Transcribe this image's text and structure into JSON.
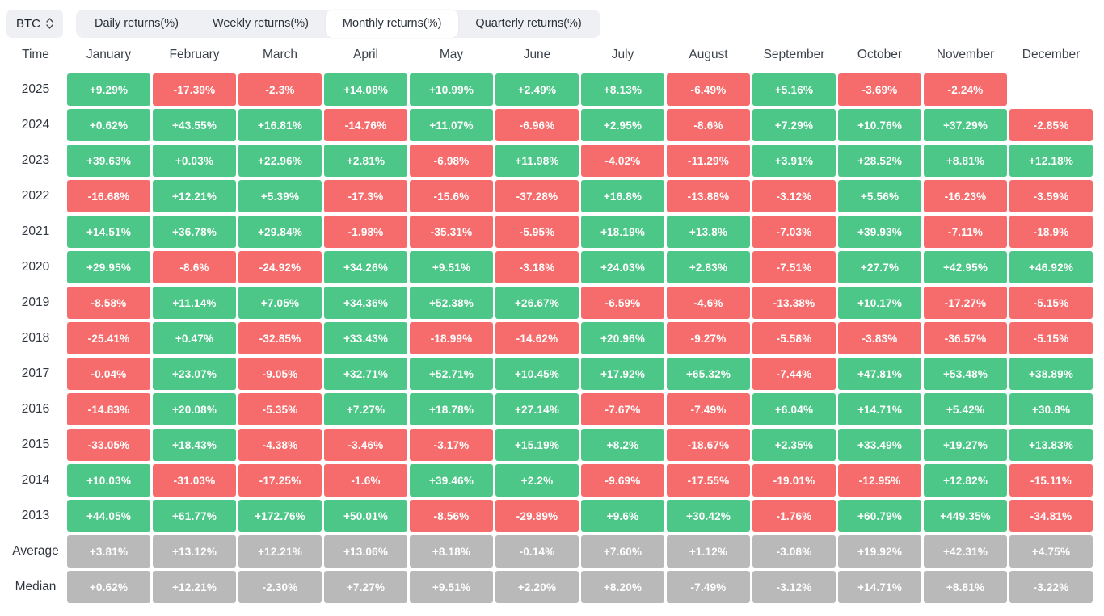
{
  "toolbar": {
    "asset_selector": {
      "value": "BTC"
    },
    "tabs": [
      {
        "label": "Daily returns(%)",
        "active": false
      },
      {
        "label": "Weekly returns(%)",
        "active": false
      },
      {
        "label": "Monthly returns(%)",
        "active": true
      },
      {
        "label": "Quarterly returns(%)",
        "active": false
      }
    ]
  },
  "colors": {
    "positive": "#4cc788",
    "negative": "#f66c6c",
    "summary": "#b9b9b9"
  },
  "table": {
    "time_header": "Time",
    "months": [
      "January",
      "February",
      "March",
      "April",
      "May",
      "June",
      "July",
      "August",
      "September",
      "October",
      "November",
      "December"
    ],
    "rows": [
      {
        "label": "2025",
        "type": "year",
        "values": [
          "+9.29%",
          "-17.39%",
          "-2.3%",
          "+14.08%",
          "+10.99%",
          "+2.49%",
          "+8.13%",
          "-6.49%",
          "+5.16%",
          "-3.69%",
          "-2.24%",
          null
        ]
      },
      {
        "label": "2024",
        "type": "year",
        "values": [
          "+0.62%",
          "+43.55%",
          "+16.81%",
          "-14.76%",
          "+11.07%",
          "-6.96%",
          "+2.95%",
          "-8.6%",
          "+7.29%",
          "+10.76%",
          "+37.29%",
          "-2.85%"
        ]
      },
      {
        "label": "2023",
        "type": "year",
        "values": [
          "+39.63%",
          "+0.03%",
          "+22.96%",
          "+2.81%",
          "-6.98%",
          "+11.98%",
          "-4.02%",
          "-11.29%",
          "+3.91%",
          "+28.52%",
          "+8.81%",
          "+12.18%"
        ]
      },
      {
        "label": "2022",
        "type": "year",
        "values": [
          "-16.68%",
          "+12.21%",
          "+5.39%",
          "-17.3%",
          "-15.6%",
          "-37.28%",
          "+16.8%",
          "-13.88%",
          "-3.12%",
          "+5.56%",
          "-16.23%",
          "-3.59%"
        ]
      },
      {
        "label": "2021",
        "type": "year",
        "values": [
          "+14.51%",
          "+36.78%",
          "+29.84%",
          "-1.98%",
          "-35.31%",
          "-5.95%",
          "+18.19%",
          "+13.8%",
          "-7.03%",
          "+39.93%",
          "-7.11%",
          "-18.9%"
        ]
      },
      {
        "label": "2020",
        "type": "year",
        "values": [
          "+29.95%",
          "-8.6%",
          "-24.92%",
          "+34.26%",
          "+9.51%",
          "-3.18%",
          "+24.03%",
          "+2.83%",
          "-7.51%",
          "+27.7%",
          "+42.95%",
          "+46.92%"
        ]
      },
      {
        "label": "2019",
        "type": "year",
        "values": [
          "-8.58%",
          "+11.14%",
          "+7.05%",
          "+34.36%",
          "+52.38%",
          "+26.67%",
          "-6.59%",
          "-4.6%",
          "-13.38%",
          "+10.17%",
          "-17.27%",
          "-5.15%"
        ]
      },
      {
        "label": "2018",
        "type": "year",
        "values": [
          "-25.41%",
          "+0.47%",
          "-32.85%",
          "+33.43%",
          "-18.99%",
          "-14.62%",
          "+20.96%",
          "-9.27%",
          "-5.58%",
          "-3.83%",
          "-36.57%",
          "-5.15%"
        ]
      },
      {
        "label": "2017",
        "type": "year",
        "values": [
          "-0.04%",
          "+23.07%",
          "-9.05%",
          "+32.71%",
          "+52.71%",
          "+10.45%",
          "+17.92%",
          "+65.32%",
          "-7.44%",
          "+47.81%",
          "+53.48%",
          "+38.89%"
        ]
      },
      {
        "label": "2016",
        "type": "year",
        "values": [
          "-14.83%",
          "+20.08%",
          "-5.35%",
          "+7.27%",
          "+18.78%",
          "+27.14%",
          "-7.67%",
          "-7.49%",
          "+6.04%",
          "+14.71%",
          "+5.42%",
          "+30.8%"
        ]
      },
      {
        "label": "2015",
        "type": "year",
        "values": [
          "-33.05%",
          "+18.43%",
          "-4.38%",
          "-3.46%",
          "-3.17%",
          "+15.19%",
          "+8.2%",
          "-18.67%",
          "+2.35%",
          "+33.49%",
          "+19.27%",
          "+13.83%"
        ]
      },
      {
        "label": "2014",
        "type": "year",
        "values": [
          "+10.03%",
          "-31.03%",
          "-17.25%",
          "-1.6%",
          "+39.46%",
          "+2.2%",
          "-9.69%",
          "-17.55%",
          "-19.01%",
          "-12.95%",
          "+12.82%",
          "-15.11%"
        ]
      },
      {
        "label": "2013",
        "type": "year",
        "values": [
          "+44.05%",
          "+61.77%",
          "+172.76%",
          "+50.01%",
          "-8.56%",
          "-29.89%",
          "+9.6%",
          "+30.42%",
          "-1.76%",
          "+60.79%",
          "+449.35%",
          "-34.81%"
        ]
      },
      {
        "label": "Average",
        "type": "summary",
        "values": [
          "+3.81%",
          "+13.12%",
          "+12.21%",
          "+13.06%",
          "+8.18%",
          "-0.14%",
          "+7.60%",
          "+1.12%",
          "-3.08%",
          "+19.92%",
          "+42.31%",
          "+4.75%"
        ]
      },
      {
        "label": "Median",
        "type": "summary",
        "values": [
          "+0.62%",
          "+12.21%",
          "-2.30%",
          "+7.27%",
          "+9.51%",
          "+2.20%",
          "+8.20%",
          "-7.49%",
          "-3.12%",
          "+14.71%",
          "+8.81%",
          "-3.22%"
        ]
      }
    ]
  }
}
